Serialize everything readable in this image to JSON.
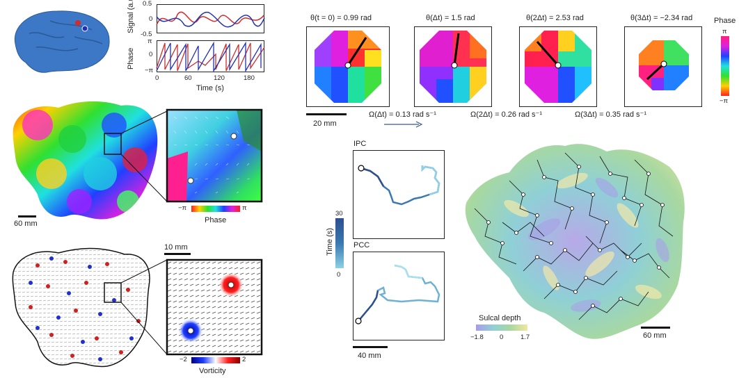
{
  "panel_a": {
    "signal_axis": {
      "label": "Signal (a.u.)",
      "ticks": [
        "0.5",
        "0",
        "-0.5"
      ]
    },
    "phase_axis": {
      "label": "Phase",
      "ticks": [
        "π",
        "0",
        "−π"
      ]
    },
    "time_axis": {
      "label": "Time (s)",
      "ticks": [
        "0",
        "60",
        "120",
        "180"
      ]
    },
    "colors": {
      "red": "#d22b2b",
      "blue": "#1f2fb8",
      "brain": "#3d78c6"
    }
  },
  "panel_b": {
    "scale_label": "60 mm",
    "phase_cbar": {
      "min": "−π",
      "max": "π",
      "title": "Phase"
    }
  },
  "panel_c": {
    "scale_label": "10 mm",
    "vorticity_cbar": {
      "min": "−2",
      "max": "2",
      "title": "Vorticity"
    }
  },
  "panel_d": {
    "snapshots": [
      {
        "title": "θ(t = 0) = 0.99 rad"
      },
      {
        "title": "θ(Δt) = 1.5 rad"
      },
      {
        "title": "θ(2Δt) = 2.53 rad"
      },
      {
        "title": "θ(3Δt) = −2.34 rad"
      }
    ],
    "omegas": [
      "Ω(Δt) = 0.13 rad s⁻¹",
      "Ω(2Δt) = 0.26 rad s⁻¹",
      "Ω(3Δt) = 0.35 rad s⁻¹"
    ],
    "scale_label": "20 mm",
    "phase_cbar": {
      "title": "Phase",
      "max": "π",
      "min": "−π"
    }
  },
  "panel_e": {
    "ipc_label": "IPC",
    "pcc_label": "PCC",
    "time_cbar": {
      "title": "Time (s)",
      "max": "30",
      "min": "0"
    },
    "scale_label": "40 mm"
  },
  "panel_f": {
    "depth_cbar": {
      "title": "Sulcal depth",
      "ticks": [
        "−1.8",
        "0",
        "1.7"
      ]
    },
    "scale_label": "60 mm"
  }
}
